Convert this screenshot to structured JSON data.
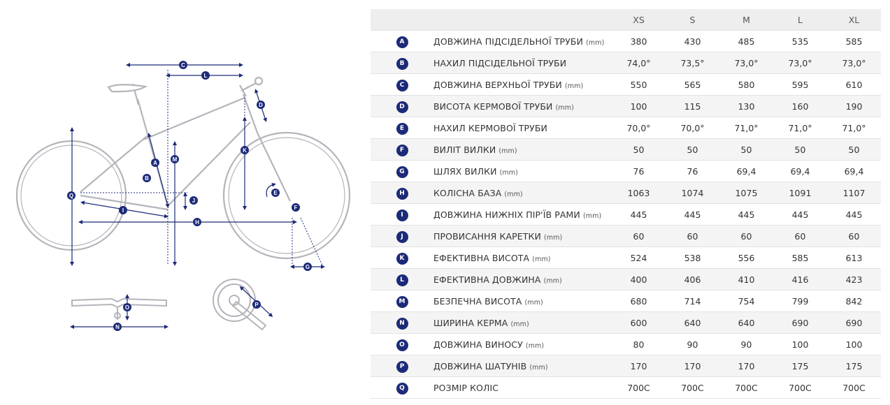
{
  "colors": {
    "badge": "#1c2a78",
    "frame": "#a9a9b0",
    "measure": "#1c2a78"
  },
  "diagram_labels": [
    "A",
    "B",
    "C",
    "D",
    "E",
    "F",
    "G",
    "H",
    "I",
    "J",
    "K",
    "L",
    "M",
    "N",
    "O",
    "P",
    "Q"
  ],
  "table": {
    "sizes": [
      "XS",
      "S",
      "M",
      "L",
      "XL"
    ],
    "rows": [
      {
        "letter": "A",
        "name": "Довжина підсідельної труби",
        "unit": "(mm)",
        "values": [
          "380",
          "430",
          "485",
          "535",
          "585"
        ]
      },
      {
        "letter": "B",
        "name": "Нахил підсідельної труби",
        "unit": "",
        "values": [
          "74,0°",
          "73,5°",
          "73,0°",
          "73,0°",
          "73,0°"
        ]
      },
      {
        "letter": "C",
        "name": "Довжина верхньої труби",
        "unit": "(mm)",
        "values": [
          "550",
          "565",
          "580",
          "595",
          "610"
        ]
      },
      {
        "letter": "D",
        "name": "Висота кермової труби",
        "unit": "(mm)",
        "values": [
          "100",
          "115",
          "130",
          "160",
          "190"
        ]
      },
      {
        "letter": "E",
        "name": "Нахил кермової труби",
        "unit": "",
        "values": [
          "70,0°",
          "70,0°",
          "71,0°",
          "71,0°",
          "71,0°"
        ]
      },
      {
        "letter": "F",
        "name": "Виліт вилки",
        "unit": "(mm)",
        "values": [
          "50",
          "50",
          "50",
          "50",
          "50"
        ]
      },
      {
        "letter": "G",
        "name": "Шлях вилки",
        "unit": "(mm)",
        "values": [
          "76",
          "76",
          "69,4",
          "69,4",
          "69,4"
        ]
      },
      {
        "letter": "H",
        "name": "Колісна база",
        "unit": "(mm)",
        "values": [
          "1063",
          "1074",
          "1075",
          "1091",
          "1107"
        ]
      },
      {
        "letter": "I",
        "name": "Довжина нижніх пір'їв рами",
        "unit": "(mm)",
        "values": [
          "445",
          "445",
          "445",
          "445",
          "445"
        ]
      },
      {
        "letter": "J",
        "name": "Провисання каретки",
        "unit": "(mm)",
        "values": [
          "60",
          "60",
          "60",
          "60",
          "60"
        ]
      },
      {
        "letter": "K",
        "name": "Ефективна висота",
        "unit": "(mm)",
        "values": [
          "524",
          "538",
          "556",
          "585",
          "613"
        ]
      },
      {
        "letter": "L",
        "name": "Ефективна довжина",
        "unit": "(mm)",
        "values": [
          "400",
          "406",
          "410",
          "416",
          "423"
        ]
      },
      {
        "letter": "M",
        "name": "Безпечна висота",
        "unit": "(mm)",
        "values": [
          "680",
          "714",
          "754",
          "799",
          "842"
        ]
      },
      {
        "letter": "N",
        "name": "Ширина керма",
        "unit": "(mm)",
        "values": [
          "600",
          "640",
          "640",
          "690",
          "690"
        ]
      },
      {
        "letter": "O",
        "name": "Довжина виносу",
        "unit": "(mm)",
        "values": [
          "80",
          "90",
          "90",
          "100",
          "100"
        ]
      },
      {
        "letter": "P",
        "name": "Довжина шатунів",
        "unit": "(mm)",
        "values": [
          "170",
          "170",
          "170",
          "175",
          "175"
        ]
      },
      {
        "letter": "Q",
        "name": "Розмір коліс",
        "unit": "",
        "values": [
          "700C",
          "700C",
          "700C",
          "700C",
          "700C"
        ]
      }
    ]
  }
}
